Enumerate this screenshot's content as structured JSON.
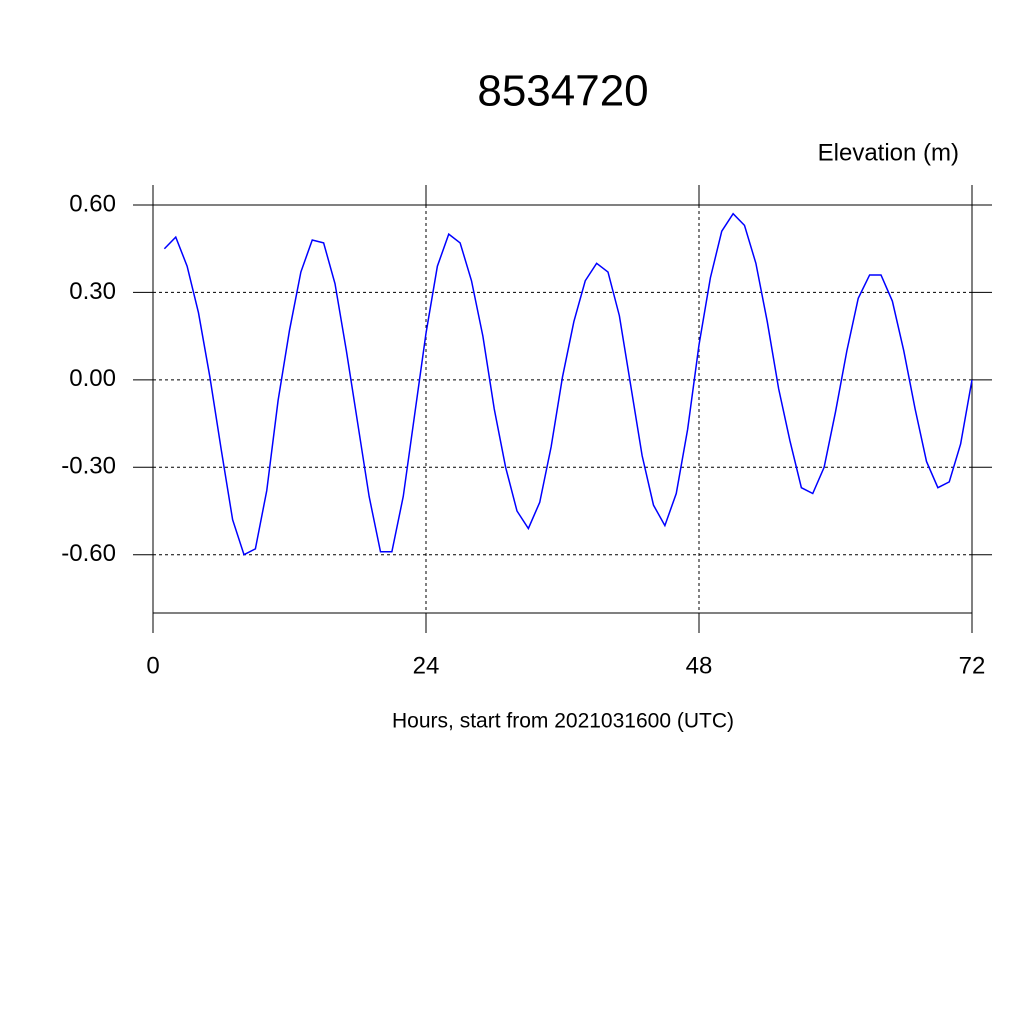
{
  "chart_data": {
    "type": "line",
    "title": "8534720",
    "subtitle": "Elevation (m)",
    "x_label": "Hours, start from 2021031600 (UTC)",
    "x": [
      1,
      2,
      3,
      4,
      5,
      6,
      7,
      8,
      9,
      10,
      11,
      12,
      13,
      14,
      15,
      16,
      17,
      18,
      19,
      20,
      21,
      22,
      23,
      24,
      25,
      26,
      27,
      28,
      29,
      30,
      31,
      32,
      33,
      34,
      35,
      36,
      37,
      38,
      39,
      40,
      41,
      42,
      43,
      44,
      45,
      46,
      47,
      48,
      49,
      50,
      51,
      52,
      53,
      54,
      55,
      56,
      57,
      58,
      59,
      60,
      61,
      62,
      63,
      64,
      65,
      66,
      67,
      68,
      69,
      70,
      71,
      72
    ],
    "series": [
      {
        "color": "#0000ff",
        "values": [
          0.45,
          0.49,
          0.39,
          0.23,
          0.01,
          -0.24,
          -0.48,
          -0.6,
          -0.58,
          -0.38,
          -0.07,
          0.17,
          0.37,
          0.48,
          0.47,
          0.33,
          0.1,
          -0.15,
          -0.4,
          -0.59,
          -0.59,
          -0.4,
          -0.12,
          0.16,
          0.39,
          0.5,
          0.47,
          0.34,
          0.15,
          -0.1,
          -0.3,
          -0.45,
          -0.51,
          -0.42,
          -0.23,
          0.01,
          0.2,
          0.34,
          0.4,
          0.37,
          0.22,
          -0.02,
          -0.26,
          -0.43,
          -0.5,
          -0.39,
          -0.17,
          0.12,
          0.35,
          0.51,
          0.57,
          0.53,
          0.4,
          0.2,
          -0.03,
          -0.21,
          -0.37,
          -0.39,
          -0.3,
          -0.11,
          0.1,
          0.28,
          0.36,
          0.36,
          0.27,
          0.1,
          -0.1,
          -0.28,
          -0.37,
          -0.35,
          -0.22,
          0.0
        ]
      }
    ],
    "xlim": [
      0,
      72
    ],
    "xticks": [
      0,
      24,
      48,
      72
    ],
    "ylim": [
      -0.8,
      0.6
    ],
    "yticks": [
      {
        "value": -0.6,
        "label": "-0.60"
      },
      {
        "value": -0.3,
        "label": "-0.30"
      },
      {
        "value": 0,
        "label": "0.00"
      },
      {
        "value": 0.3,
        "label": "0.30"
      },
      {
        "value": 0.6,
        "label": "0.60"
      }
    ],
    "grid": true
  }
}
